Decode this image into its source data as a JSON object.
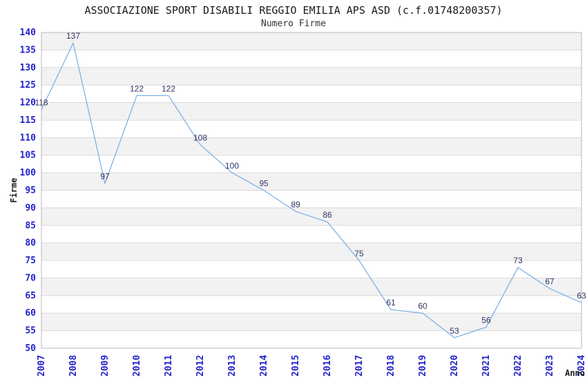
{
  "header": {
    "title": "ASSOCIAZIONE SPORT DISABILI REGGIO EMILIA APS ASD (c.f.01748200357)",
    "subtitle": "Numero Firme"
  },
  "chart_data": {
    "type": "line",
    "title": "ASSOCIAZIONE SPORT DISABILI REGGIO EMILIA APS ASD (c.f.01748200357)",
    "subtitle": "Numero Firme",
    "xlabel": "Anno",
    "ylabel": "Firme",
    "x": [
      "2007",
      "2008",
      "2009",
      "2010",
      "2011",
      "2012",
      "2013",
      "2014",
      "2015",
      "2016",
      "2017",
      "2018",
      "2019",
      "2020",
      "2021",
      "2022",
      "2023",
      "2024"
    ],
    "values": [
      118,
      137,
      97,
      122,
      122,
      108,
      100,
      95,
      89,
      86,
      75,
      61,
      60,
      53,
      56,
      73,
      67,
      63
    ],
    "ylim": [
      50,
      140
    ],
    "ytick_step": 5,
    "grid": true,
    "legend": false,
    "band_alternating": true,
    "colors": {
      "line": "#7fb2e5",
      "data_label": "#333366",
      "tick_label": "#2222cc",
      "grid": "#d9d9d9",
      "band": "#f2f2f2",
      "plot_border": "#b8b8b8",
      "title": "#1a1a1a",
      "axis_title": "#1a1a1a",
      "background": "#ffffff"
    }
  }
}
